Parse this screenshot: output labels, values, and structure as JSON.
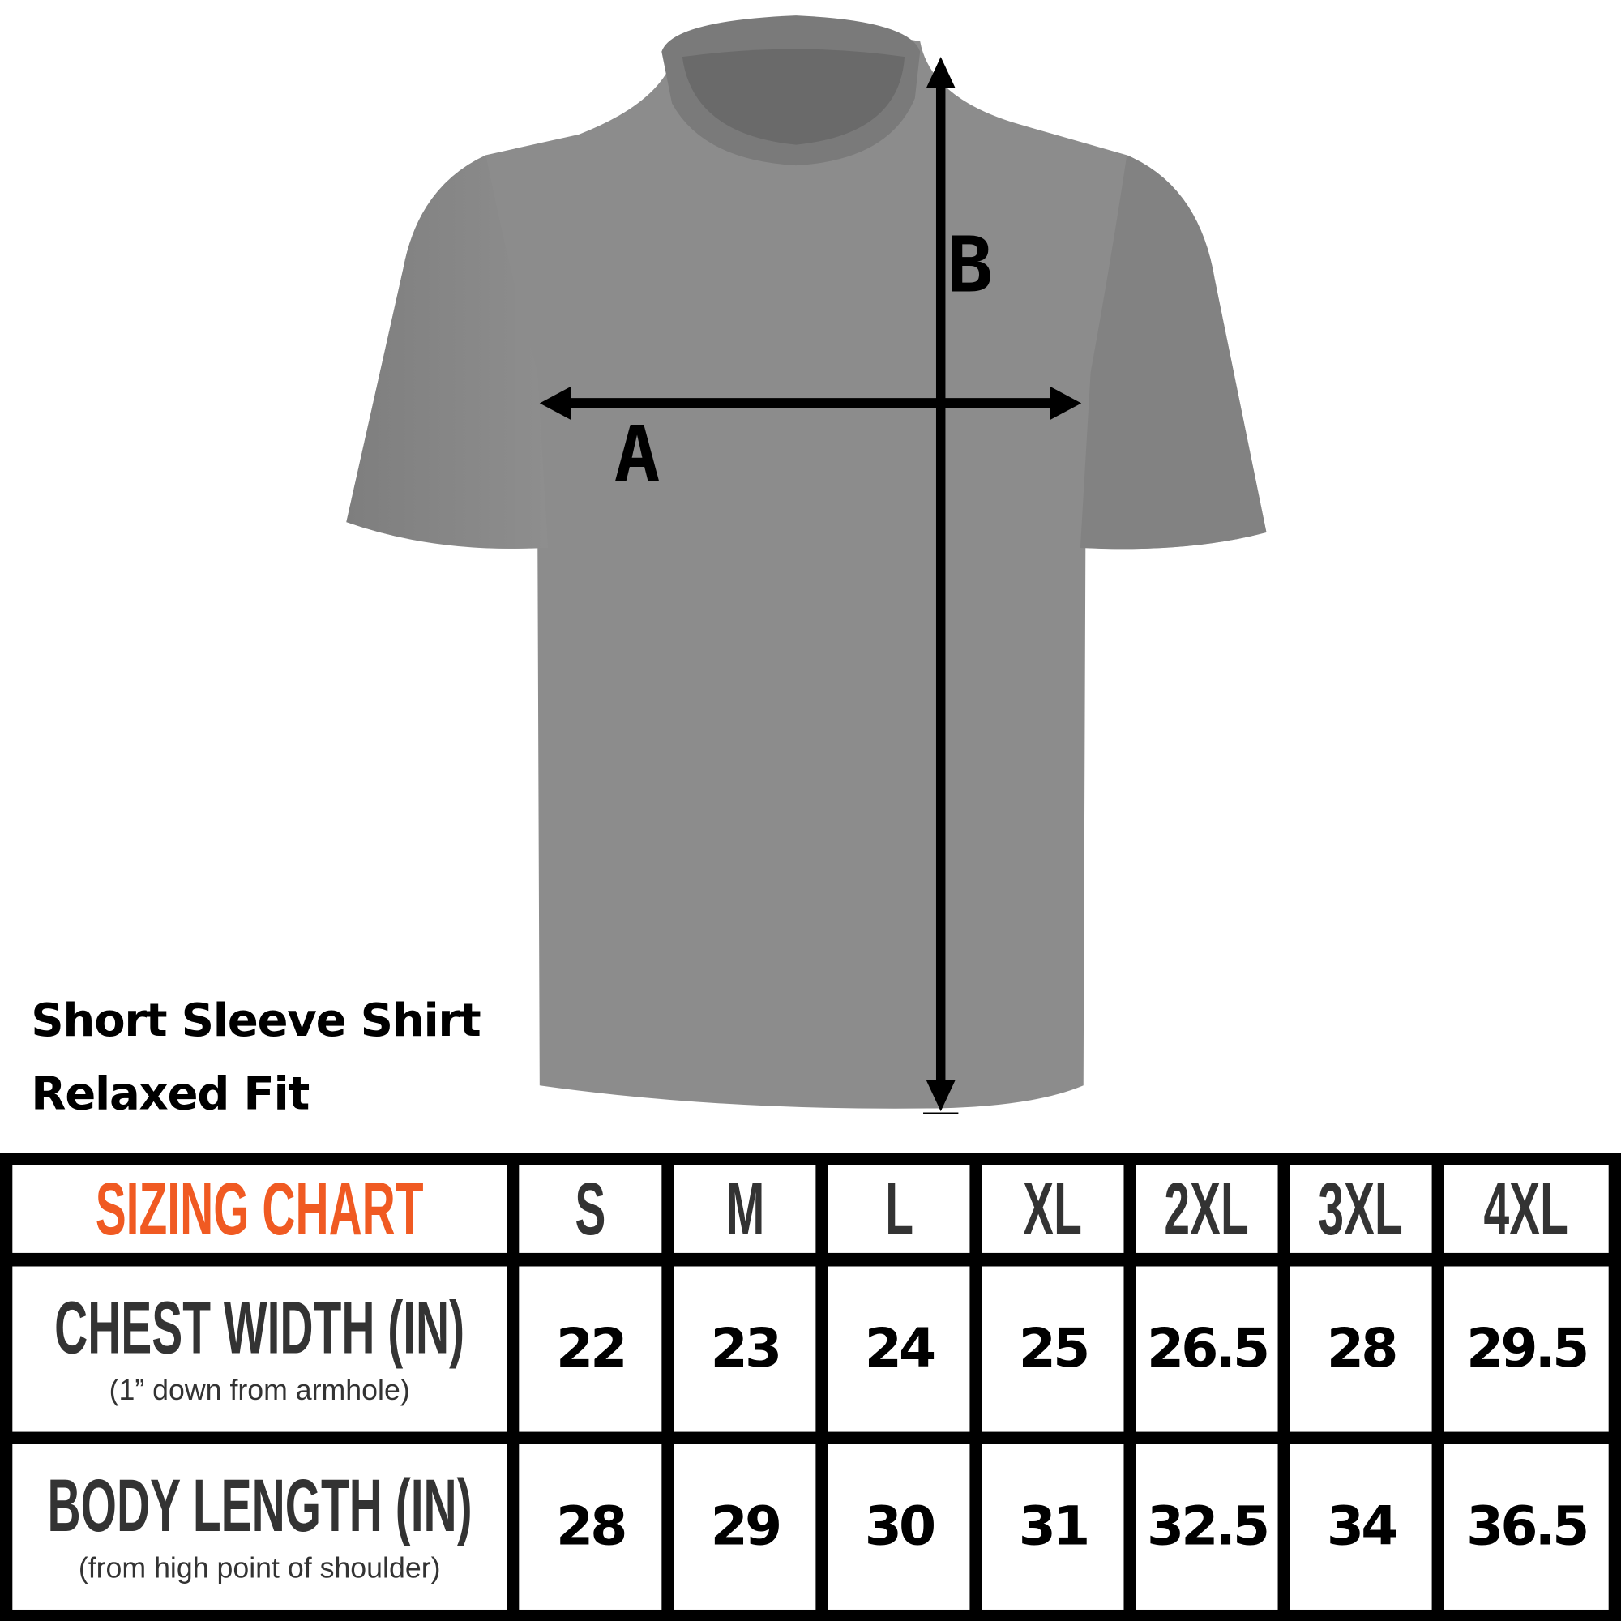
{
  "garment": {
    "title_line1": "Short Sleeve Shirt",
    "title_line2": "Relaxed Fit",
    "shirt_color": "#8c8c8c",
    "measure_a_label": "A",
    "measure_b_label": "B"
  },
  "table": {
    "heading": "SIZING CHART",
    "heading_color": "#f05a22",
    "sizes": [
      "S",
      "M",
      "L",
      "XL",
      "2XL",
      "3XL",
      "4XL"
    ],
    "rows": [
      {
        "label": "CHEST WIDTH (IN)",
        "note": "(1” down from armhole)",
        "values": [
          "22",
          "23",
          "24",
          "25",
          "26.5",
          "28",
          "29.5"
        ]
      },
      {
        "label": "BODY LENGTH (IN)",
        "note": "(from high point of shoulder)",
        "values": [
          "28",
          "29",
          "30",
          "31",
          "32.5",
          "34",
          "36.5"
        ]
      }
    ]
  }
}
